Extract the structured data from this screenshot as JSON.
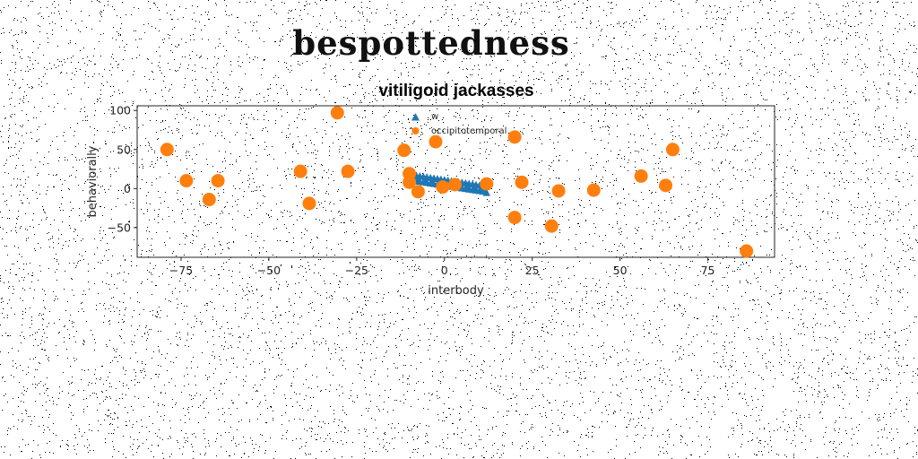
{
  "page": {
    "title": "bespottedness"
  },
  "colors": {
    "series_w": "#1f77b4",
    "series_occ": "#ff7f0e",
    "axis": "#222222",
    "noise": "#000000"
  },
  "chart_data": {
    "type": "scatter",
    "title": "vitiligoid jackasses",
    "xlabel": "interbody",
    "ylabel": "behaviorally",
    "xlim": [
      -87.5,
      94
    ],
    "ylim": [
      -88,
      106
    ],
    "xticks": [
      -75,
      -50,
      -25,
      0,
      25,
      50,
      75
    ],
    "xtick_labels": [
      "−75",
      "−50",
      "−25",
      "0",
      "25",
      "50",
      "75"
    ],
    "yticks": [
      100,
      50,
      0,
      -50
    ],
    "ytick_labels": [
      "100",
      "50",
      "0",
      "−50"
    ],
    "grid": false,
    "legend": {
      "position": "upper-center"
    },
    "series": [
      {
        "name": "w",
        "marker": "triangle",
        "color": "#1f77b4",
        "points": [
          [
            -8.0,
            16.5
          ],
          [
            -7.0,
            15.8
          ],
          [
            -6.0,
            15.2
          ],
          [
            -5.0,
            14.5
          ],
          [
            -4.0,
            13.8
          ],
          [
            -3.0,
            13.1
          ],
          [
            -2.0,
            12.4
          ],
          [
            -1.0,
            11.7
          ],
          [
            0.0,
            11.0
          ],
          [
            1.0,
            10.3
          ],
          [
            2.0,
            9.6
          ],
          [
            3.0,
            8.9
          ],
          [
            4.0,
            8.2
          ],
          [
            5.0,
            7.5
          ],
          [
            6.0,
            6.8
          ],
          [
            7.0,
            6.1
          ],
          [
            8.0,
            5.4
          ],
          [
            9.0,
            4.7
          ],
          [
            10.0,
            4.0
          ],
          [
            11.0,
            3.3
          ],
          [
            -8.0,
            9.5
          ],
          [
            -7.0,
            8.8
          ],
          [
            -6.0,
            8.1
          ],
          [
            -5.0,
            7.4
          ],
          [
            -4.0,
            6.7
          ],
          [
            -3.0,
            6.0
          ],
          [
            -2.0,
            5.3
          ],
          [
            -1.0,
            4.6
          ],
          [
            0.0,
            3.9
          ],
          [
            1.0,
            3.2
          ],
          [
            2.0,
            2.5
          ],
          [
            3.0,
            1.8
          ],
          [
            4.0,
            1.1
          ],
          [
            5.0,
            0.4
          ],
          [
            6.0,
            -0.3
          ],
          [
            7.0,
            -1.0
          ],
          [
            8.0,
            -1.7
          ],
          [
            9.0,
            -2.4
          ],
          [
            10.0,
            -3.1
          ],
          [
            11.0,
            -3.8
          ],
          [
            12.0,
            -5.5
          ],
          [
            -7.5,
            12.8
          ],
          [
            -5.5,
            11.5
          ],
          [
            -3.5,
            10.2
          ],
          [
            -1.5,
            8.9
          ],
          [
            0.5,
            7.6
          ],
          [
            2.5,
            6.3
          ],
          [
            4.5,
            5.0
          ],
          [
            6.5,
            3.7
          ],
          [
            8.5,
            2.4
          ],
          [
            10.5,
            1.1
          ],
          [
            11.5,
            -1.0
          ]
        ]
      },
      {
        "name": "occipitotemporal",
        "marker": "circle",
        "color": "#ff7f0e",
        "points": [
          [
            -30.5,
            97
          ],
          [
            -79,
            50
          ],
          [
            -73.5,
            10
          ],
          [
            -67,
            -14
          ],
          [
            -64.5,
            10
          ],
          [
            -41,
            22
          ],
          [
            -38.5,
            -19
          ],
          [
            -27.5,
            22
          ],
          [
            -11.5,
            49
          ],
          [
            -10,
            19
          ],
          [
            -10,
            8
          ],
          [
            -7.5,
            -4
          ],
          [
            -2.5,
            60
          ],
          [
            -0.5,
            2
          ],
          [
            3,
            5
          ],
          [
            12,
            6
          ],
          [
            20,
            66
          ],
          [
            20,
            -37
          ],
          [
            22,
            8
          ],
          [
            30.5,
            -48
          ],
          [
            32.5,
            -3
          ],
          [
            42.5,
            -2
          ],
          [
            56,
            16
          ],
          [
            63,
            4
          ],
          [
            65,
            50
          ],
          [
            86,
            -80
          ]
        ]
      }
    ]
  }
}
